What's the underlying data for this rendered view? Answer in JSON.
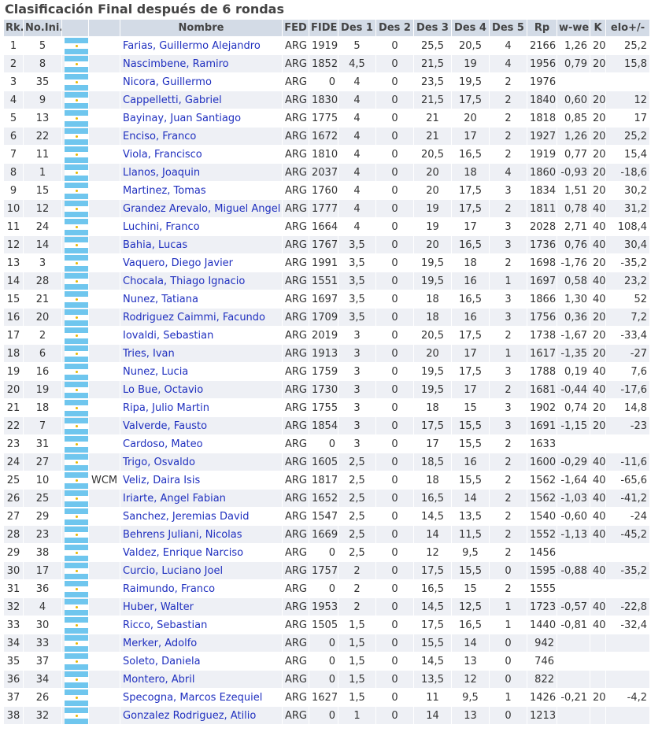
{
  "page": {
    "title": "Clasificación Final después de 6 rondas"
  },
  "table": {
    "headers": [
      "Rk.",
      "No.Ini.",
      "",
      "",
      "Nombre",
      "FED",
      "FIDE",
      "Des 1",
      "Des 2",
      "Des 3",
      "Des 4",
      "Des 5",
      "Rp",
      "w-we",
      "K",
      "elo+/-"
    ],
    "flag_icon": "argentina-flag-icon",
    "rows": [
      [
        "1",
        "5",
        "",
        "Farias, Guillermo Alejandro",
        "ARG",
        "1919",
        "5",
        "0",
        "25,5",
        "20,5",
        "4",
        "2166",
        "1,26",
        "20",
        "25,2"
      ],
      [
        "2",
        "8",
        "",
        "Nascimbene, Ramiro",
        "ARG",
        "1852",
        "4,5",
        "0",
        "21,5",
        "19",
        "4",
        "1956",
        "0,79",
        "20",
        "15,8"
      ],
      [
        "3",
        "35",
        "",
        "Nicora, Guillermo",
        "ARG",
        "0",
        "4",
        "0",
        "23,5",
        "19,5",
        "2",
        "1976",
        "",
        "",
        ""
      ],
      [
        "4",
        "9",
        "",
        "Cappelletti, Gabriel",
        "ARG",
        "1830",
        "4",
        "0",
        "21,5",
        "17,5",
        "2",
        "1840",
        "0,60",
        "20",
        "12"
      ],
      [
        "5",
        "13",
        "",
        "Bayinay, Juan Santiago",
        "ARG",
        "1775",
        "4",
        "0",
        "21",
        "20",
        "2",
        "1818",
        "0,85",
        "20",
        "17"
      ],
      [
        "6",
        "22",
        "",
        "Enciso, Franco",
        "ARG",
        "1672",
        "4",
        "0",
        "21",
        "17",
        "2",
        "1927",
        "1,26",
        "20",
        "25,2"
      ],
      [
        "7",
        "11",
        "",
        "Viola, Francisco",
        "ARG",
        "1810",
        "4",
        "0",
        "20,5",
        "16,5",
        "2",
        "1919",
        "0,77",
        "20",
        "15,4"
      ],
      [
        "8",
        "1",
        "",
        "Llanos, Joaquin",
        "ARG",
        "2037",
        "4",
        "0",
        "20",
        "18",
        "4",
        "1860",
        "-0,93",
        "20",
        "-18,6"
      ],
      [
        "9",
        "15",
        "",
        "Martinez, Tomas",
        "ARG",
        "1760",
        "4",
        "0",
        "20",
        "17,5",
        "3",
        "1834",
        "1,51",
        "20",
        "30,2"
      ],
      [
        "10",
        "12",
        "",
        "Grandez Arevalo, Miguel Angel",
        "ARG",
        "1777",
        "4",
        "0",
        "19",
        "17,5",
        "2",
        "1811",
        "0,78",
        "40",
        "31,2"
      ],
      [
        "11",
        "24",
        "",
        "Luchini, Franco",
        "ARG",
        "1664",
        "4",
        "0",
        "19",
        "17",
        "3",
        "2028",
        "2,71",
        "40",
        "108,4"
      ],
      [
        "12",
        "14",
        "",
        "Bahia, Lucas",
        "ARG",
        "1767",
        "3,5",
        "0",
        "20",
        "16,5",
        "3",
        "1736",
        "0,76",
        "40",
        "30,4"
      ],
      [
        "13",
        "3",
        "",
        "Vaquero, Diego Javier",
        "ARG",
        "1991",
        "3,5",
        "0",
        "19,5",
        "18",
        "2",
        "1698",
        "-1,76",
        "20",
        "-35,2"
      ],
      [
        "14",
        "28",
        "",
        "Chocala, Thiago Ignacio",
        "ARG",
        "1551",
        "3,5",
        "0",
        "19,5",
        "16",
        "1",
        "1697",
        "0,58",
        "40",
        "23,2"
      ],
      [
        "15",
        "21",
        "",
        "Nunez, Tatiana",
        "ARG",
        "1697",
        "3,5",
        "0",
        "18",
        "16,5",
        "3",
        "1866",
        "1,30",
        "40",
        "52"
      ],
      [
        "16",
        "20",
        "",
        "Rodriguez Caimmi, Facundo",
        "ARG",
        "1709",
        "3,5",
        "0",
        "18",
        "16",
        "3",
        "1756",
        "0,36",
        "20",
        "7,2"
      ],
      [
        "17",
        "2",
        "",
        "Iovaldi, Sebastian",
        "ARG",
        "2019",
        "3",
        "0",
        "20,5",
        "17,5",
        "2",
        "1738",
        "-1,67",
        "20",
        "-33,4"
      ],
      [
        "18",
        "6",
        "",
        "Tries, Ivan",
        "ARG",
        "1913",
        "3",
        "0",
        "20",
        "17",
        "1",
        "1617",
        "-1,35",
        "20",
        "-27"
      ],
      [
        "19",
        "16",
        "",
        "Nunez, Lucia",
        "ARG",
        "1759",
        "3",
        "0",
        "19,5",
        "17,5",
        "3",
        "1788",
        "0,19",
        "40",
        "7,6"
      ],
      [
        "20",
        "19",
        "",
        "Lo Bue, Octavio",
        "ARG",
        "1730",
        "3",
        "0",
        "19,5",
        "17",
        "2",
        "1681",
        "-0,44",
        "40",
        "-17,6"
      ],
      [
        "21",
        "18",
        "",
        "Ripa, Julio Martin",
        "ARG",
        "1755",
        "3",
        "0",
        "18",
        "15",
        "3",
        "1902",
        "0,74",
        "20",
        "14,8"
      ],
      [
        "22",
        "7",
        "",
        "Valverde, Fausto",
        "ARG",
        "1854",
        "3",
        "0",
        "17,5",
        "15,5",
        "3",
        "1691",
        "-1,15",
        "20",
        "-23"
      ],
      [
        "23",
        "31",
        "",
        "Cardoso, Mateo",
        "ARG",
        "0",
        "3",
        "0",
        "17",
        "15,5",
        "2",
        "1633",
        "",
        "",
        ""
      ],
      [
        "24",
        "27",
        "",
        "Trigo, Osvaldo",
        "ARG",
        "1605",
        "2,5",
        "0",
        "18,5",
        "16",
        "2",
        "1600",
        "-0,29",
        "40",
        "-11,6"
      ],
      [
        "25",
        "10",
        "WCM",
        "Veliz, Daira Isis",
        "ARG",
        "1817",
        "2,5",
        "0",
        "18",
        "15,5",
        "2",
        "1562",
        "-1,64",
        "40",
        "-65,6"
      ],
      [
        "26",
        "25",
        "",
        "Iriarte, Angel Fabian",
        "ARG",
        "1652",
        "2,5",
        "0",
        "16,5",
        "14",
        "2",
        "1562",
        "-1,03",
        "40",
        "-41,2"
      ],
      [
        "27",
        "29",
        "",
        "Sanchez, Jeremias David",
        "ARG",
        "1547",
        "2,5",
        "0",
        "14,5",
        "13,5",
        "2",
        "1540",
        "-0,60",
        "40",
        "-24"
      ],
      [
        "28",
        "23",
        "",
        "Behrens Juliani, Nicolas",
        "ARG",
        "1669",
        "2,5",
        "0",
        "14",
        "11,5",
        "2",
        "1552",
        "-1,13",
        "40",
        "-45,2"
      ],
      [
        "29",
        "38",
        "",
        "Valdez, Enrique Narciso",
        "ARG",
        "0",
        "2,5",
        "0",
        "12",
        "9,5",
        "2",
        "1456",
        "",
        "",
        ""
      ],
      [
        "30",
        "17",
        "",
        "Curcio, Luciano Joel",
        "ARG",
        "1757",
        "2",
        "0",
        "17,5",
        "15,5",
        "0",
        "1595",
        "-0,88",
        "40",
        "-35,2"
      ],
      [
        "31",
        "36",
        "",
        "Raimundo, Franco",
        "ARG",
        "0",
        "2",
        "0",
        "16,5",
        "15",
        "2",
        "1555",
        "",
        "",
        ""
      ],
      [
        "32",
        "4",
        "",
        "Huber, Walter",
        "ARG",
        "1953",
        "2",
        "0",
        "14,5",
        "12,5",
        "1",
        "1723",
        "-0,57",
        "40",
        "-22,8"
      ],
      [
        "33",
        "30",
        "",
        "Ricco, Sebastian",
        "ARG",
        "1505",
        "1,5",
        "0",
        "17,5",
        "16,5",
        "1",
        "1440",
        "-0,81",
        "40",
        "-32,4"
      ],
      [
        "34",
        "33",
        "",
        "Merker, Adolfo",
        "ARG",
        "0",
        "1,5",
        "0",
        "15,5",
        "14",
        "0",
        "942",
        "",
        "",
        ""
      ],
      [
        "35",
        "37",
        "",
        "Soleto, Daniela",
        "ARG",
        "0",
        "1,5",
        "0",
        "14,5",
        "13",
        "0",
        "746",
        "",
        "",
        ""
      ],
      [
        "36",
        "34",
        "",
        "Montero, Abril",
        "ARG",
        "0",
        "1,5",
        "0",
        "13,5",
        "12",
        "0",
        "822",
        "",
        "",
        ""
      ],
      [
        "37",
        "26",
        "",
        "Specogna, Marcos Ezequiel",
        "ARG",
        "1627",
        "1,5",
        "0",
        "11",
        "9,5",
        "1",
        "1426",
        "-0,21",
        "20",
        "-4,2"
      ],
      [
        "38",
        "32",
        "",
        "Gonzalez Rodriguez, Atilio",
        "ARG",
        "0",
        "1",
        "0",
        "14",
        "13",
        "0",
        "1213",
        "",
        "",
        ""
      ]
    ]
  }
}
